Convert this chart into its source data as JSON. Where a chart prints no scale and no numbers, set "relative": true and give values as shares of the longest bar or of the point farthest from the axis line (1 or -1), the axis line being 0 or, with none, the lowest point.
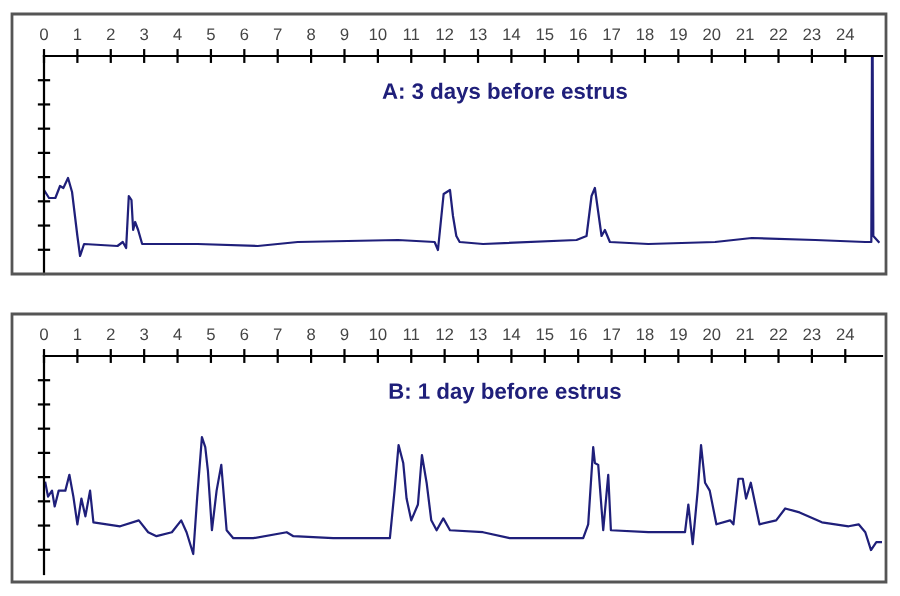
{
  "chart_data": [
    {
      "type": "line",
      "relative": true,
      "annotations": [
        "A: 3 days before estrus"
      ],
      "xlim": [
        0,
        25.1
      ],
      "xticks": [
        0,
        1,
        2,
        3,
        4,
        5,
        6,
        7,
        8,
        9,
        10,
        11,
        12,
        13,
        14,
        15,
        16,
        17,
        18,
        19,
        20,
        21,
        22,
        23,
        24
      ],
      "tick_labels": "x",
      "grid": false,
      "legend": false,
      "series": [
        {
          "color": "#1f1f7a",
          "x": [
            0,
            0.15,
            0.34,
            0.48,
            0.58,
            0.72,
            0.84,
            1.0,
            1.08,
            1.2,
            2.2,
            2.36,
            2.46,
            2.54,
            2.62,
            2.67,
            2.73,
            2.82,
            2.94,
            4.6,
            6.4,
            7.6,
            10.6,
            11.7,
            11.8,
            11.97,
            12.16,
            12.25,
            12.35,
            12.45,
            13.15,
            15.95,
            16.25,
            16.4,
            16.5,
            16.6,
            16.7,
            16.8,
            16.95,
            18.1,
            20.1,
            21.2,
            23.1,
            24.6,
            24.78,
            24.8,
            24.82,
            24.84,
            25.0
          ],
          "values": [
            -0.67,
            -0.71,
            -0.71,
            -0.65,
            -0.66,
            -0.61,
            -0.68,
            -0.9,
            -1.0,
            -0.94,
            -0.95,
            -0.93,
            -0.96,
            -0.7,
            -0.72,
            -0.87,
            -0.83,
            -0.87,
            -0.94,
            -0.94,
            -0.95,
            -0.93,
            -0.92,
            -0.93,
            -0.97,
            -0.69,
            -0.67,
            -0.8,
            -0.9,
            -0.93,
            -0.94,
            -0.92,
            -0.9,
            -0.7,
            -0.66,
            -0.78,
            -0.9,
            -0.87,
            -0.93,
            -0.94,
            -0.93,
            -0.91,
            -0.92,
            -0.93,
            -0.93,
            0,
            0,
            -0.9,
            -0.93
          ]
        }
      ]
    },
    {
      "type": "line",
      "relative": true,
      "annotations": [
        "B: 1 day before estrus"
      ],
      "xlim": [
        0,
        25.1
      ],
      "xticks": [
        0,
        1,
        2,
        3,
        4,
        5,
        6,
        7,
        8,
        9,
        10,
        11,
        12,
        13,
        14,
        15,
        16,
        17,
        18,
        19,
        20,
        21,
        22,
        23,
        24
      ],
      "tick_labels": "x",
      "grid": false,
      "legend": false,
      "series": [
        {
          "color": "#1f1f7a",
          "x": [
            0.04,
            0.12,
            0.24,
            0.32,
            0.44,
            0.64,
            0.76,
            0.88,
            1.0,
            1.12,
            1.24,
            1.38,
            1.48,
            2.28,
            2.84,
            3.12,
            3.37,
            3.83,
            4.11,
            4.27,
            4.47,
            4.59,
            4.73,
            4.83,
            4.91,
            5.03,
            5.17,
            5.31,
            5.47,
            5.67,
            6.27,
            7.27,
            7.47,
            8.66,
            10.36,
            10.5,
            10.62,
            10.76,
            10.86,
            11.0,
            11.2,
            11.32,
            11.46,
            11.6,
            11.76,
            11.96,
            12.16,
            13.15,
            13.95,
            16.15,
            16.3,
            16.45,
            16.5,
            16.6,
            16.75,
            16.9,
            16.98,
            18.1,
            19.2,
            19.3,
            19.43,
            19.58,
            19.68,
            19.8,
            19.94,
            20.14,
            20.55,
            20.65,
            20.8,
            20.93,
            21.03,
            21.17,
            21.43,
            21.93,
            22.2,
            22.63,
            23.3,
            24.1,
            24.4,
            24.6,
            24.77,
            24.93,
            25.1
          ],
          "values": [
            -0.64,
            -0.71,
            -0.68,
            -0.76,
            -0.68,
            -0.68,
            -0.6,
            -0.71,
            -0.85,
            -0.72,
            -0.81,
            -0.68,
            -0.84,
            -0.86,
            -0.83,
            -0.89,
            -0.91,
            -0.89,
            -0.83,
            -0.89,
            -1.0,
            -0.71,
            -0.41,
            -0.46,
            -0.58,
            -0.88,
            -0.68,
            -0.55,
            -0.88,
            -0.92,
            -0.92,
            -0.89,
            -0.91,
            -0.92,
            -0.92,
            -0.68,
            -0.45,
            -0.54,
            -0.72,
            -0.83,
            -0.75,
            -0.5,
            -0.64,
            -0.83,
            -0.88,
            -0.82,
            -0.88,
            -0.89,
            -0.92,
            -0.92,
            -0.85,
            -0.46,
            -0.54,
            -0.55,
            -0.88,
            -0.6,
            -0.88,
            -0.89,
            -0.89,
            -0.75,
            -0.95,
            -0.68,
            -0.45,
            -0.64,
            -0.68,
            -0.85,
            -0.83,
            -0.85,
            -0.62,
            -0.62,
            -0.72,
            -0.64,
            -0.85,
            -0.83,
            -0.77,
            -0.79,
            -0.84,
            -0.86,
            -0.85,
            -0.89,
            -0.98,
            -0.94,
            -0.94
          ]
        }
      ]
    }
  ]
}
